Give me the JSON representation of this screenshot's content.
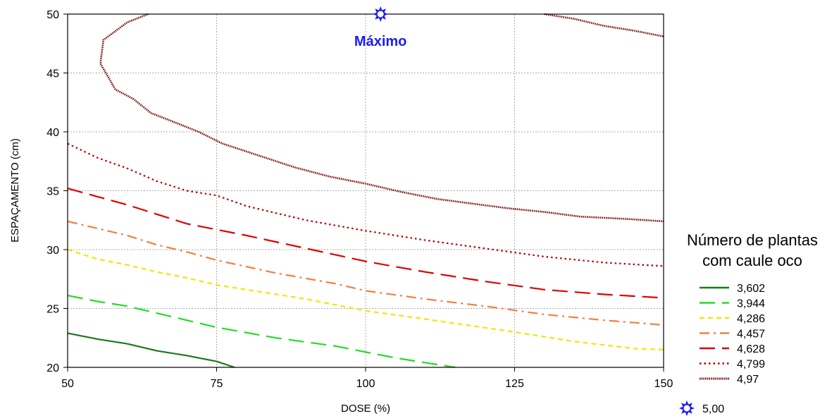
{
  "chart_data": {
    "type": "contour",
    "xlabel": "DOSE (%)",
    "ylabel": "ESPAÇAMENTO (cm)",
    "xlim": [
      50,
      150
    ],
    "ylim": [
      20,
      50
    ],
    "xticks": [
      "50",
      "75",
      "100",
      "125",
      "150"
    ],
    "yticks": [
      "20",
      "25",
      "30",
      "35",
      "40",
      "45",
      "50"
    ],
    "grid": true,
    "legend": {
      "title_lines": [
        "Número de plantas",
        "com caule oco"
      ],
      "placement": "right"
    },
    "series": [
      {
        "name": "3,602",
        "color": "#1a7a1a",
        "style": "solid",
        "points": [
          [
            50,
            22.9
          ],
          [
            55,
            22.4
          ],
          [
            60,
            22.0
          ],
          [
            65,
            21.4
          ],
          [
            70,
            21.0
          ],
          [
            75,
            20.5
          ],
          [
            78,
            20.0
          ]
        ]
      },
      {
        "name": "3,944",
        "color": "#22dd22",
        "style": "longdash",
        "points": [
          [
            50,
            26.1
          ],
          [
            55,
            25.6
          ],
          [
            60,
            25.2
          ],
          [
            65,
            24.6
          ],
          [
            75,
            23.4
          ],
          [
            85,
            22.5
          ],
          [
            95,
            21.8
          ],
          [
            100,
            21.3
          ],
          [
            105,
            20.8
          ],
          [
            110,
            20.4
          ],
          [
            115,
            20.0
          ]
        ]
      },
      {
        "name": "4,286",
        "color": "#f0e800",
        "style": "shortdash",
        "points": [
          [
            50,
            30.0
          ],
          [
            55,
            29.2
          ],
          [
            60,
            28.7
          ],
          [
            65,
            28.1
          ],
          [
            70,
            27.6
          ],
          [
            75,
            27.0
          ],
          [
            80,
            26.6
          ],
          [
            90,
            25.8
          ],
          [
            100,
            24.8
          ],
          [
            110,
            24.1
          ],
          [
            125,
            23.0
          ],
          [
            135,
            22.2
          ],
          [
            145,
            21.6
          ],
          [
            150,
            21.5
          ]
        ]
      },
      {
        "name": "4,457",
        "color": "#f08040",
        "style": "dashdot",
        "points": [
          [
            50,
            32.4
          ],
          [
            55,
            31.8
          ],
          [
            60,
            31.2
          ],
          [
            65,
            30.4
          ],
          [
            70,
            29.8
          ],
          [
            75,
            29.1
          ],
          [
            85,
            28.0
          ],
          [
            95,
            27.1
          ],
          [
            100,
            26.5
          ],
          [
            110,
            25.8
          ],
          [
            120,
            25.2
          ],
          [
            130,
            24.5
          ],
          [
            140,
            24.0
          ],
          [
            150,
            23.6
          ]
        ]
      },
      {
        "name": "4,628",
        "color": "#e00000",
        "style": "longdash",
        "points": [
          [
            50,
            35.2
          ],
          [
            55,
            34.5
          ],
          [
            60,
            33.8
          ],
          [
            65,
            33.0
          ],
          [
            70,
            32.2
          ],
          [
            75,
            31.7
          ],
          [
            80,
            31.2
          ],
          [
            90,
            30.1
          ],
          [
            100,
            29.0
          ],
          [
            110,
            28.1
          ],
          [
            120,
            27.3
          ],
          [
            130,
            26.6
          ],
          [
            140,
            26.2
          ],
          [
            150,
            25.9
          ]
        ]
      },
      {
        "name": "4,799",
        "color": "#b00000",
        "style": "dotted",
        "points": [
          [
            50,
            39.0
          ],
          [
            55,
            37.8
          ],
          [
            60,
            36.9
          ],
          [
            65,
            35.8
          ],
          [
            70,
            35.0
          ],
          [
            75,
            34.6
          ],
          [
            80,
            33.7
          ],
          [
            90,
            32.5
          ],
          [
            100,
            31.6
          ],
          [
            110,
            30.8
          ],
          [
            120,
            30.1
          ],
          [
            130,
            29.4
          ],
          [
            140,
            28.9
          ],
          [
            150,
            28.6
          ]
        ]
      },
      {
        "name": "4,97",
        "color": "#7a0000",
        "style": "dense",
        "points": [
          [
            63.5,
            50.0
          ],
          [
            60,
            49.3
          ],
          [
            56,
            47.8
          ],
          [
            55.5,
            45.8
          ],
          [
            57,
            44.5
          ],
          [
            58,
            43.6
          ],
          [
            61,
            42.8
          ],
          [
            64,
            41.6
          ],
          [
            68,
            40.8
          ],
          [
            72,
            40.0
          ],
          [
            76,
            39.0
          ],
          [
            82,
            38.0
          ],
          [
            88,
            37.0
          ],
          [
            94,
            36.2
          ],
          [
            100,
            35.6
          ],
          [
            106,
            34.9
          ],
          [
            112,
            34.3
          ],
          [
            118,
            33.9
          ],
          [
            124,
            33.5
          ],
          [
            130,
            33.2
          ],
          [
            136,
            32.8
          ],
          [
            144,
            32.6
          ],
          [
            150,
            32.4
          ]
        ]
      },
      {
        "name": "4,97-upper",
        "color": "#7a0000",
        "style": "dense",
        "legend": false,
        "points": [
          [
            130,
            50.0
          ],
          [
            135,
            49.6
          ],
          [
            140,
            49.0
          ],
          [
            145,
            48.6
          ],
          [
            150,
            48.1
          ]
        ]
      }
    ],
    "annotations": [
      {
        "text": "Máximo",
        "x": 102.5,
        "y": 47.3,
        "color": "#1a1aff"
      }
    ],
    "markers": [
      {
        "x": 102.5,
        "y": 50.0,
        "symbol": "star",
        "color": "#1a1aff",
        "label": "5,00"
      }
    ]
  }
}
